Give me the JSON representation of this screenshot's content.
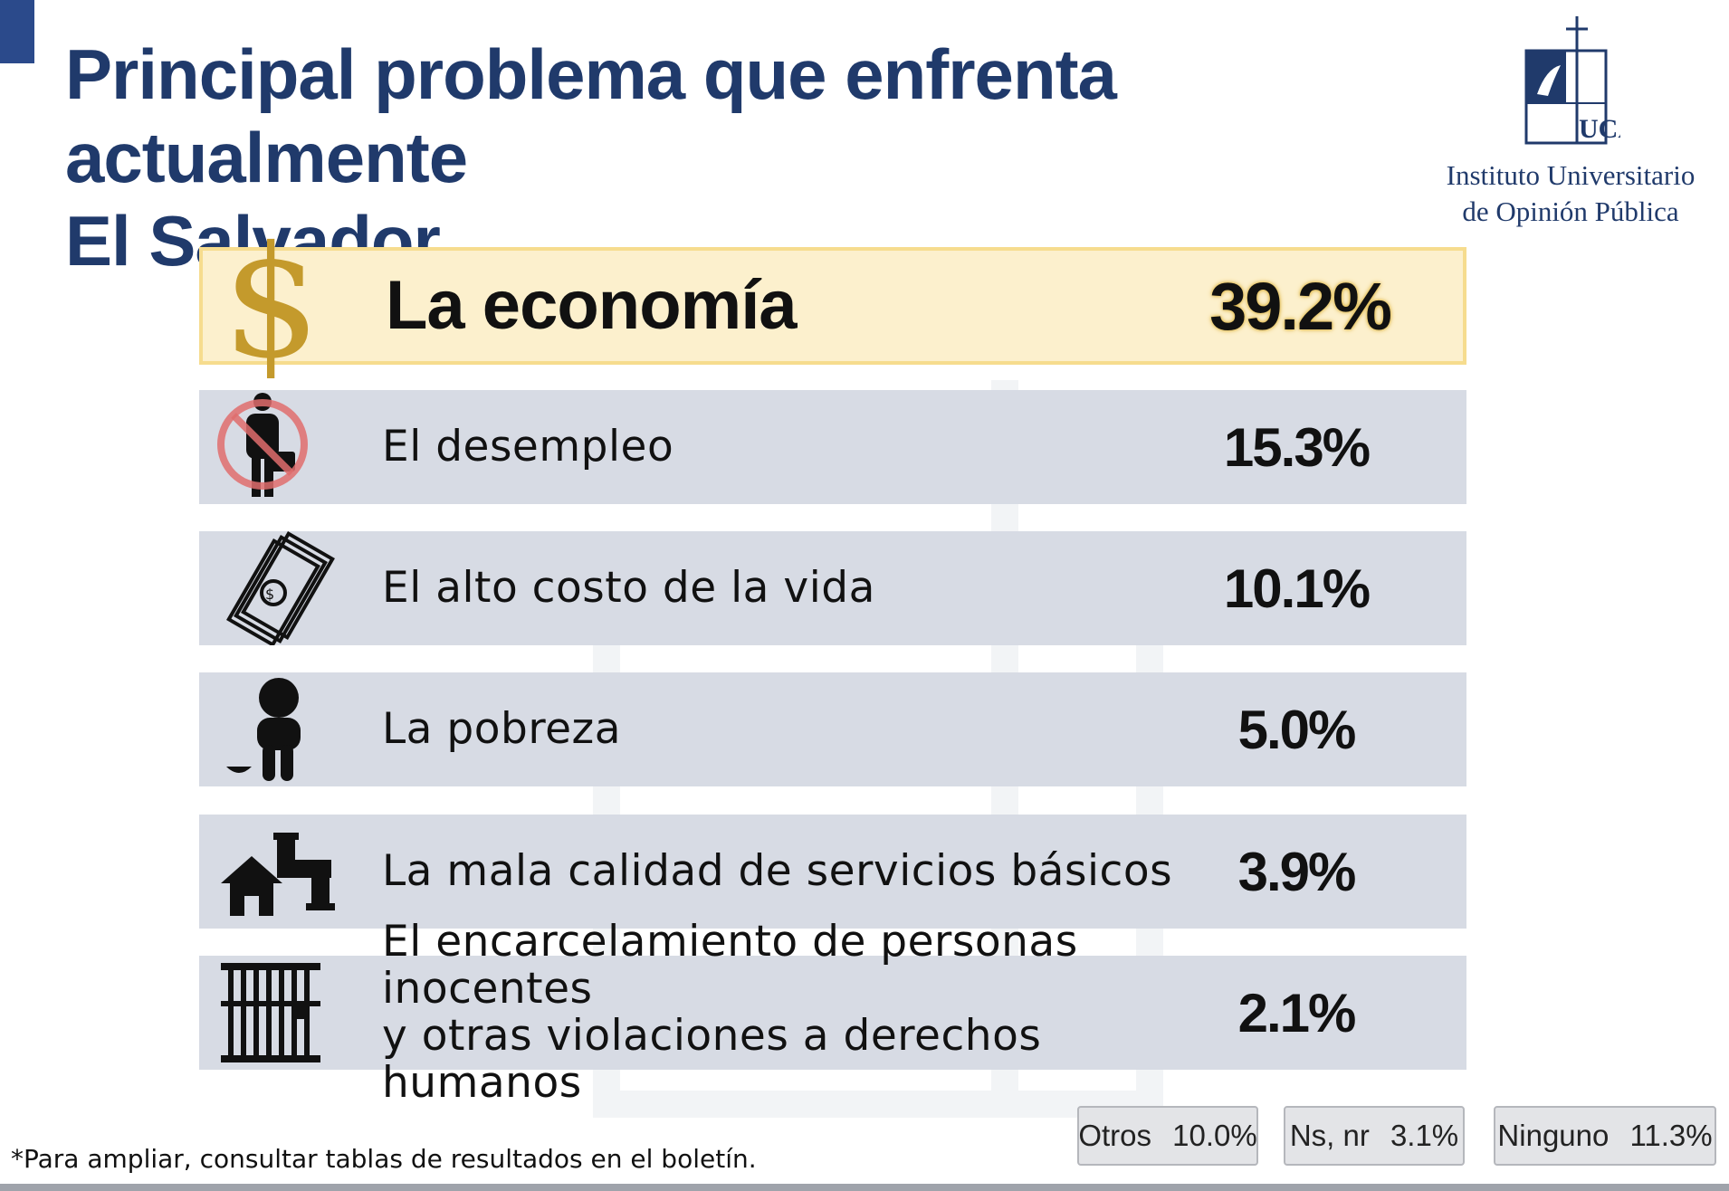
{
  "title_lines": [
    "Principal problema que enfrenta actualmente",
    "El Salvador"
  ],
  "logo": {
    "text_lines": [
      "Instituto Universitario",
      "de Opinión Pública"
    ],
    "wordmark": "UCA"
  },
  "chart_data": {
    "type": "bar",
    "title": "Principal problema que enfrenta actualmente El Salvador",
    "categories": [
      "La economía",
      "El desempleo",
      "El alto costo de la vida",
      "La pobreza",
      "La mala calidad de servicios básicos",
      "El encarcelamiento de personas inocentes y otras violaciones a derechos humanos"
    ],
    "values": [
      39.2,
      15.3,
      10.1,
      5.0,
      3.9,
      2.1
    ],
    "items": [
      {
        "label_lines": [
          "La economía"
        ],
        "value_label": "39.2%",
        "icon": "dollar-sign-icon",
        "highlight": true
      },
      {
        "label_lines": [
          "El desempleo"
        ],
        "value_label": "15.3%",
        "icon": "unemployed-person-icon",
        "highlight": false
      },
      {
        "label_lines": [
          "El alto costo de la vida"
        ],
        "value_label": "10.1%",
        "icon": "money-bills-icon",
        "highlight": false
      },
      {
        "label_lines": [
          "La pobreza"
        ],
        "value_label": "5.0%",
        "icon": "poverty-person-icon",
        "highlight": false
      },
      {
        "label_lines": [
          "La mala calidad de servicios básicos"
        ],
        "value_label": "3.9%",
        "icon": "house-pipe-icon",
        "highlight": false
      },
      {
        "label_lines": [
          "El encarcelamiento de personas inocentes",
          "y otras violaciones a derechos humanos"
        ],
        "value_label": "2.1%",
        "icon": "jail-bars-icon",
        "highlight": false
      }
    ],
    "other_responses": [
      {
        "label": "Otros",
        "value": 10.0,
        "value_label": "10.0%"
      },
      {
        "label": "Ns, nr",
        "value": 3.1,
        "value_label": "3.1%"
      },
      {
        "label": "Ninguno",
        "value": 11.3,
        "value_label": "11.3%"
      }
    ],
    "unit": "%",
    "highlight_color": "#fcf0cd",
    "row_color": "#d7dbe4",
    "accent_color": "#c49a2c"
  },
  "footnote": "*Para ampliar, consultar tablas de resultados en el boletín.",
  "colors": {
    "title": "#203a6b",
    "corner_bar": "#2b4a8b"
  }
}
